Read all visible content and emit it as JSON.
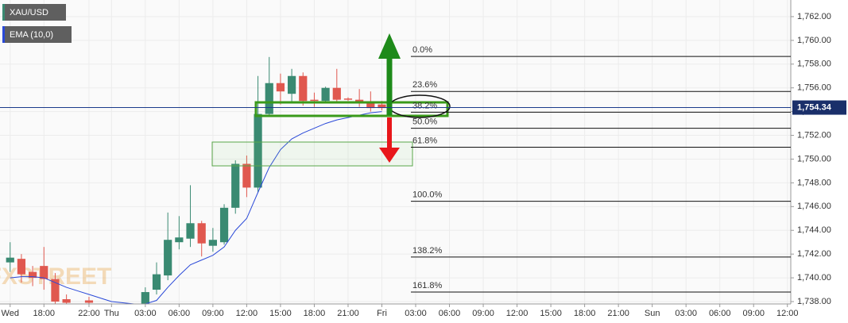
{
  "chart_data": {
    "type": "candlestick",
    "legend": [
      "XAU/USD",
      "EMA (10,0)"
    ],
    "watermark": "FXSTREET",
    "x": [
      -3,
      -2,
      -1,
      0,
      1,
      2,
      4,
      9,
      10,
      11,
      12,
      13,
      14,
      15,
      16,
      17,
      18,
      19,
      20,
      21,
      22,
      23,
      24,
      25,
      26,
      27,
      28,
      29,
      30
    ],
    "open": [
      1741.3,
      1741.6,
      1740.5,
      1741.0,
      1739.9,
      1738.2,
      1738.1,
      1737.8,
      1739.0,
      1740.2,
      1743.0,
      1743.3,
      1744.6,
      1742.7,
      1743.0,
      1745.9,
      1749.6,
      1747.6,
      1753.8,
      1756.4,
      1755.5,
      1757.0,
      1755.0,
      1754.9,
      1756.0,
      1755.1,
      1755.0,
      1754.8,
      1754.6
    ],
    "high": [
      1743.0,
      1742.0,
      1741.0,
      1742.6,
      1740.4,
      1738.6,
      1738.4,
      1739.2,
      1741.3,
      1745.5,
      1745.2,
      1747.8,
      1744.8,
      1744.2,
      1746.2,
      1749.9,
      1750.3,
      1757.0,
      1758.6,
      1757.2,
      1757.6,
      1757.3,
      1755.6,
      1756.1,
      1757.6,
      1755.2,
      1755.9,
      1755.7,
      1754.9
    ],
    "low": [
      1740.5,
      1739.6,
      1739.3,
      1739.0,
      1737.8,
      1737.6,
      1737.7,
      1737.6,
      1738.6,
      1739.8,
      1742.4,
      1742.6,
      1741.8,
      1742.2,
      1742.8,
      1745.4,
      1746.8,
      1747.2,
      1753.6,
      1754.6,
      1754.8,
      1754.5,
      1754.4,
      1754.7,
      1754.8,
      1754.9,
      1754.4,
      1754.0,
      1754.1
    ],
    "close": [
      1741.7,
      1740.3,
      1740.0,
      1739.9,
      1738.0,
      1737.9,
      1737.9,
      1738.8,
      1740.3,
      1743.2,
      1743.4,
      1744.6,
      1742.9,
      1743.2,
      1745.9,
      1749.6,
      1747.6,
      1753.8,
      1756.4,
      1755.7,
      1757.0,
      1754.9,
      1754.9,
      1756.0,
      1755.0,
      1755.0,
      1754.8,
      1754.3,
      1754.3
    ],
    "up_color": "#3a8a72",
    "down_color": "#e0584f",
    "ema": {
      "color": "#2a49d8",
      "x": [
        -3,
        -2,
        -1,
        0,
        1,
        2,
        3,
        4,
        5,
        6,
        7,
        8,
        9,
        10,
        11,
        12,
        13,
        14,
        15,
        16,
        17,
        18,
        19,
        20,
        21,
        22,
        23,
        24,
        25,
        26,
        27,
        28,
        29,
        30
      ],
      "values": [
        1740.0,
        1740.1,
        1740.1,
        1740.0,
        1739.6,
        1739.2,
        1738.9,
        1738.6,
        1738.3,
        1738.0,
        1737.9,
        1737.8,
        1737.8,
        1738.1,
        1739.2,
        1740.2,
        1741.1,
        1741.5,
        1741.9,
        1742.6,
        1744.0,
        1745.0,
        1747.2,
        1749.3,
        1750.8,
        1751.7,
        1752.2,
        1752.6,
        1753.0,
        1753.3,
        1753.5,
        1753.7,
        1753.9,
        1754.0
      ]
    },
    "last": {
      "value": 1754.34,
      "label": "1,754.34"
    },
    "fib_levels": [
      {
        "label": "0.0%",
        "value": 1758.65
      },
      {
        "label": "23.6%",
        "value": 1755.7
      },
      {
        "label": "38.2%",
        "value": 1753.95
      },
      {
        "label": "50.0%",
        "value": 1752.6
      },
      {
        "label": "61.8%",
        "value": 1751.0
      },
      {
        "label": "100.0%",
        "value": 1746.45
      },
      {
        "label": "138.2%",
        "value": 1741.75
      },
      {
        "label": "161.8%",
        "value": 1738.8
      }
    ],
    "xlim": [
      -3.9,
      66.3
    ],
    "xticks": [
      {
        "value": -3,
        "label": "Wed"
      },
      {
        "value": 0,
        "label": "18:00"
      },
      {
        "value": 4,
        "label": "22:00"
      },
      {
        "value": 6,
        "label": "Thu"
      },
      {
        "value": 9,
        "label": "03:00"
      },
      {
        "value": 12,
        "label": "06:00"
      },
      {
        "value": 15,
        "label": "09:00"
      },
      {
        "value": 18,
        "label": "12:00"
      },
      {
        "value": 21,
        "label": "15:00"
      },
      {
        "value": 24,
        "label": "18:00"
      },
      {
        "value": 27,
        "label": "21:00"
      },
      {
        "value": 30,
        "label": "Fri"
      },
      {
        "value": 33,
        "label": "03:00"
      },
      {
        "value": 36,
        "label": "06:00"
      },
      {
        "value": 39,
        "label": "09:00"
      },
      {
        "value": 42,
        "label": "12:00"
      },
      {
        "value": 45,
        "label": "15:00"
      },
      {
        "value": 48,
        "label": "18:00"
      },
      {
        "value": 51,
        "label": "21:00"
      },
      {
        "value": 54,
        "label": "Sun"
      },
      {
        "value": 57,
        "label": "03:00"
      },
      {
        "value": 60,
        "label": "06:00"
      },
      {
        "value": 63,
        "label": "09:00"
      },
      {
        "value": 66,
        "label": "12:00"
      }
    ],
    "ylim": [
      1737.8,
      1763.4
    ],
    "yticks": [
      {
        "value": 1738,
        "label": "1,738.00"
      },
      {
        "value": 1740,
        "label": "1,740.00"
      },
      {
        "value": 1742,
        "label": "1,742.00"
      },
      {
        "value": 1744,
        "label": "1,744.00"
      },
      {
        "value": 1746,
        "label": "1,746.00"
      },
      {
        "value": 1748,
        "label": "1,748.00"
      },
      {
        "value": 1750,
        "label": "1,750.00"
      },
      {
        "value": 1752,
        "label": "1,752.00"
      },
      {
        "value": 1754,
        "label": "1,754.00"
      },
      {
        "value": 1756,
        "label": "1,756.00"
      },
      {
        "value": 1758,
        "label": "1,758.00"
      },
      {
        "value": 1760,
        "label": "1,760.00"
      },
      {
        "value": 1762,
        "label": "1,762.00"
      }
    ],
    "grid": true
  }
}
